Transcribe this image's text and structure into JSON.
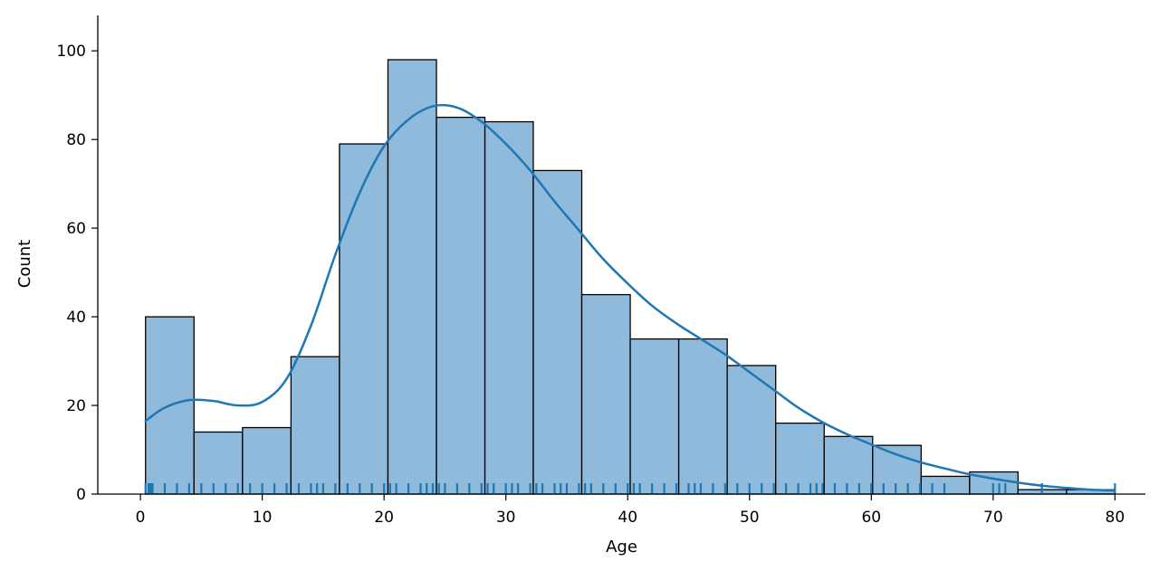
{
  "chart_data": {
    "type": "histogram",
    "xlabel": "Age",
    "ylabel": "Count",
    "xlim": [
      -3.5,
      82.5
    ],
    "ylim": [
      0,
      108
    ],
    "xticks": [
      0,
      10,
      20,
      30,
      40,
      50,
      60,
      70,
      80
    ],
    "yticks": [
      0,
      20,
      40,
      60,
      80,
      100
    ],
    "bins": [
      {
        "start": 0.42,
        "end": 4.4,
        "count": 40
      },
      {
        "start": 4.4,
        "end": 8.38,
        "count": 14
      },
      {
        "start": 8.38,
        "end": 12.36,
        "count": 15
      },
      {
        "start": 12.36,
        "end": 16.34,
        "count": 31
      },
      {
        "start": 16.34,
        "end": 20.32,
        "count": 79
      },
      {
        "start": 20.32,
        "end": 24.3,
        "count": 98
      },
      {
        "start": 24.3,
        "end": 28.28,
        "count": 85
      },
      {
        "start": 28.28,
        "end": 32.25,
        "count": 84
      },
      {
        "start": 32.25,
        "end": 36.23,
        "count": 73
      },
      {
        "start": 36.23,
        "end": 40.21,
        "count": 45
      },
      {
        "start": 40.21,
        "end": 44.19,
        "count": 35
      },
      {
        "start": 44.19,
        "end": 48.17,
        "count": 35
      },
      {
        "start": 48.17,
        "end": 52.15,
        "count": 29
      },
      {
        "start": 52.15,
        "end": 56.13,
        "count": 16
      },
      {
        "start": 56.13,
        "end": 60.11,
        "count": 13
      },
      {
        "start": 60.11,
        "end": 64.09,
        "count": 11
      },
      {
        "start": 64.09,
        "end": 68.07,
        "count": 4
      },
      {
        "start": 68.07,
        "end": 72.04,
        "count": 5
      },
      {
        "start": 72.04,
        "end": 76.02,
        "count": 1
      },
      {
        "start": 76.02,
        "end": 80.0,
        "count": 1
      }
    ],
    "kde": {
      "x": [
        0.42,
        2,
        4,
        6,
        8,
        10,
        12,
        14,
        16,
        18,
        20,
        22,
        24,
        26,
        28,
        30,
        32,
        34,
        36,
        38,
        40,
        42,
        44,
        46,
        48,
        50,
        52,
        54,
        56,
        58,
        60,
        62,
        64,
        66,
        68,
        70,
        72,
        74,
        76,
        78,
        80
      ],
      "y": [
        16.5,
        19.5,
        21.2,
        21.0,
        20.0,
        20.8,
        26.0,
        38.0,
        54.0,
        68.0,
        78.5,
        84.5,
        87.5,
        87.2,
        84.0,
        79.0,
        73.0,
        66.0,
        59.5,
        53.0,
        47.5,
        42.5,
        38.5,
        35.0,
        31.5,
        27.5,
        23.5,
        19.5,
        16.2,
        13.5,
        11.2,
        9.0,
        7.2,
        5.8,
        4.5,
        3.5,
        2.6,
        1.9,
        1.4,
        1.0,
        0.8
      ]
    },
    "rug": [
      0.42,
      0.67,
      0.75,
      0.83,
      0.92,
      1,
      2,
      3,
      4,
      5,
      6,
      7,
      8,
      9,
      10,
      11,
      12,
      13,
      14,
      14.5,
      15,
      16,
      17,
      18,
      19,
      20,
      20.5,
      21,
      22,
      23,
      23.5,
      24,
      24.5,
      25,
      26,
      27,
      28,
      28.5,
      29,
      30,
      30.5,
      31,
      32,
      32.5,
      33,
      34,
      34.5,
      35,
      36,
      36.5,
      37,
      38,
      39,
      40,
      40.5,
      41,
      42,
      43,
      44,
      45,
      45.5,
      46,
      47,
      48,
      49,
      50,
      51,
      52,
      53,
      54,
      55,
      55.5,
      56,
      57,
      58,
      59,
      60,
      61,
      62,
      63,
      64,
      65,
      66,
      70,
      70.5,
      71,
      74,
      80
    ],
    "grid": false,
    "colors": {
      "bar_fill": "#8fbadb",
      "bar_edge": "#000000",
      "kde_line": "#1f77b4",
      "rug": "#1f77b4"
    }
  }
}
